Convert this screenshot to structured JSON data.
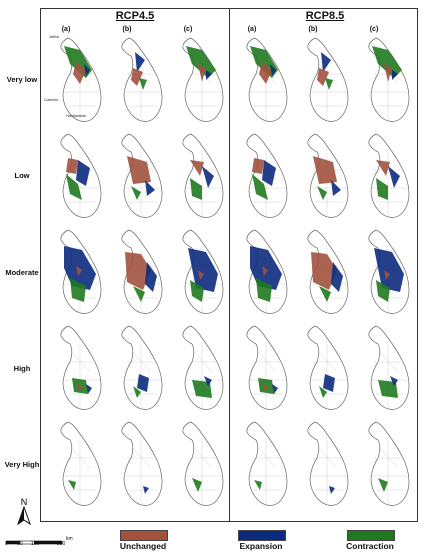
{
  "scenarios": [
    {
      "title": "RCP4.5",
      "panels": [
        "(a)",
        "(b)",
        "(c)"
      ]
    },
    {
      "title": "RCP8.5",
      "panels": [
        "(a)",
        "(b)",
        "(c)"
      ]
    }
  ],
  "rows": [
    {
      "label": "Very low"
    },
    {
      "label": "Low"
    },
    {
      "label": "Moderate"
    },
    {
      "label": "High"
    },
    {
      "label": "Very High"
    }
  ],
  "place_labels": {
    "jaffna": "Jaffna",
    "colombo": "Colombo",
    "hambantota": "Hambantota"
  },
  "legend": [
    {
      "label": "Unchanged",
      "color": "#a0523d"
    },
    {
      "label": "Expansion",
      "color": "#0d2b7e"
    },
    {
      "label": "Contraction",
      "color": "#1f7a1f"
    }
  ],
  "north_arrow": {
    "label": "N"
  },
  "scale_bar": {
    "ticks": [
      "0",
      "50",
      "100",
      "200"
    ],
    "unit": "km"
  },
  "colors": {
    "unchanged": "#a0523d",
    "expansion": "#0d2b7e",
    "contraction": "#1f7a1f",
    "outline": "#666666"
  }
}
